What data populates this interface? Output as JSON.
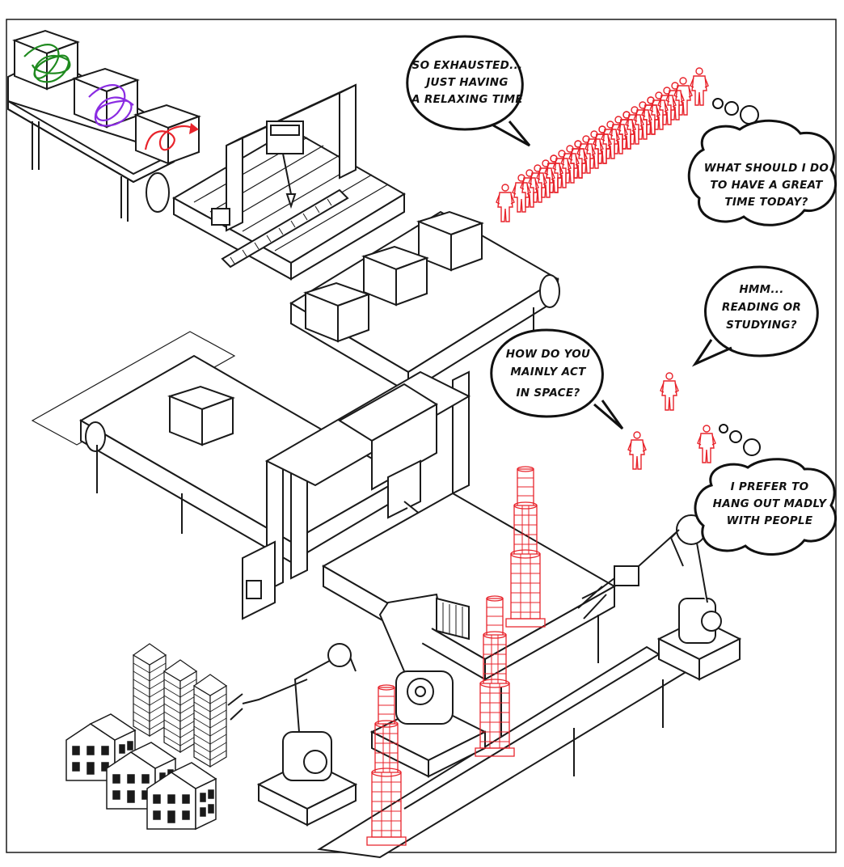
{
  "speech": {
    "exhausted": [
      "SO EXHAUSTED...",
      "JUST HAVING",
      "A RELAXING TIME"
    ],
    "great_time": [
      "WHAT SHOULD I DO",
      "TO HAVE A GREAT",
      "TIME TODAY?"
    ],
    "reading": [
      "HMM...",
      "READING OR",
      "STUDYING?"
    ],
    "act_in_space": [
      "HOW DO YOU",
      "MAINLY ACT",
      "IN SPACE?"
    ],
    "hang_out": [
      "I PREFER TO",
      "HANG OUT MADLY",
      "WITH PEOPLE"
    ]
  },
  "colors": {
    "line": "#1a1a1a",
    "accent_red": "#e8232b",
    "scribble_green": "#1f8a1f",
    "scribble_purple": "#8a2be2"
  },
  "crowd": {
    "count": 28
  },
  "icons": [
    "scribble-box",
    "arrow-box",
    "human-figure",
    "tower",
    "building",
    "skyscraper",
    "robot-arm",
    "cnc-machine",
    "conveyor"
  ]
}
